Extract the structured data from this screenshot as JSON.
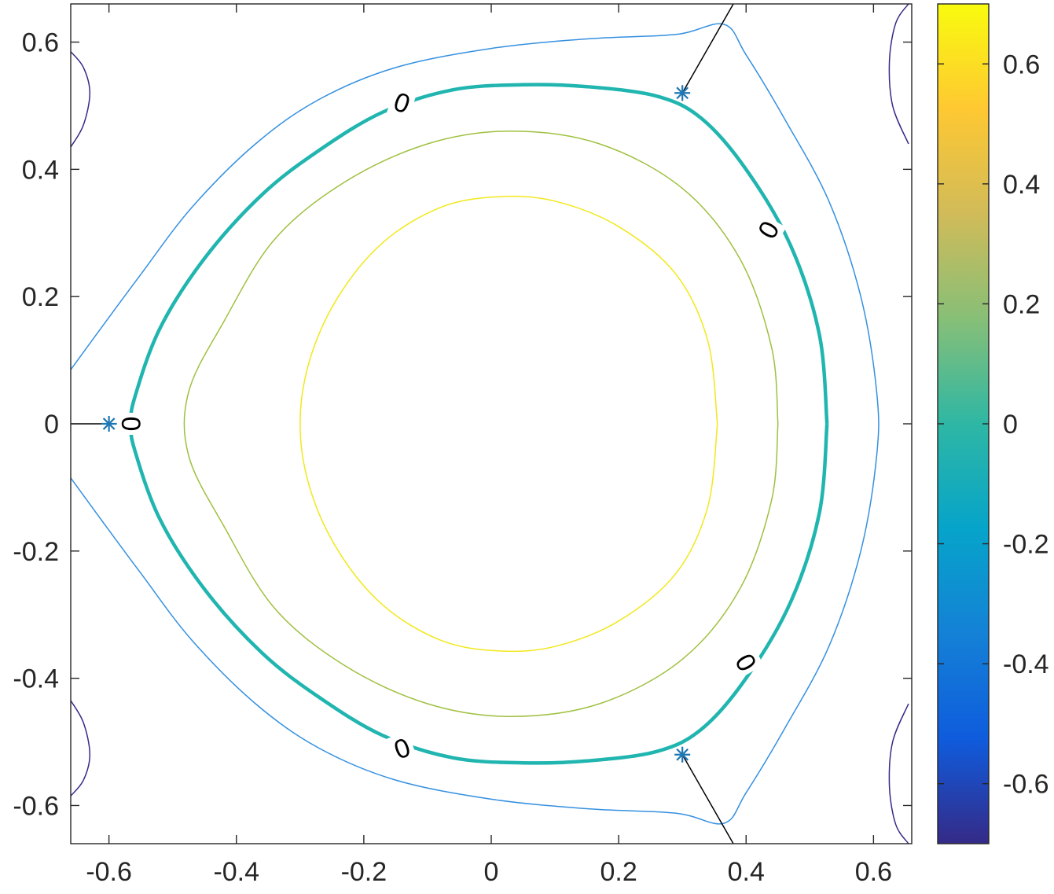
{
  "chart_data": {
    "type": "contour",
    "title": "",
    "xlabel": "",
    "ylabel": "",
    "xlim": [
      -0.66,
      0.66
    ],
    "ylim": [
      -0.66,
      0.66
    ],
    "xticks": [
      -0.6,
      -0.4,
      -0.2,
      0,
      0.2,
      0.4,
      0.6
    ],
    "xtick_labels": [
      "-0.6",
      "-0.4",
      "-0.2",
      "0",
      "0.2",
      "0.4",
      "0.6"
    ],
    "yticks": [
      -0.6,
      -0.4,
      -0.2,
      0,
      0.2,
      0.4,
      0.6
    ],
    "ytick_labels": [
      "-0.6",
      "-0.4",
      "-0.2",
      "0",
      "0.2",
      "0.4",
      "0.6"
    ],
    "grid": false,
    "colorbar": {
      "clim": [
        -0.7,
        0.7
      ],
      "ticks": [
        0.6,
        0.4,
        0.2,
        0,
        -0.2,
        -0.4,
        -0.6
      ],
      "tick_labels": [
        "0.6",
        "0.4",
        "0.2",
        "0",
        "-0.2",
        "-0.4",
        "-0.6"
      ],
      "colormap": "parula"
    },
    "contours": [
      {
        "level": 0.35,
        "color": "#f2e81c",
        "width": 1.5,
        "points": [
          [
            0.355,
            0
          ],
          [
            0.34,
            0.13
          ],
          [
            0.29,
            0.235
          ],
          [
            0.2,
            0.31
          ],
          [
            0.1,
            0.35
          ],
          [
            0.01,
            0.357
          ],
          [
            -0.08,
            0.34
          ],
          [
            -0.17,
            0.285
          ],
          [
            -0.24,
            0.2
          ],
          [
            -0.285,
            0.1
          ],
          [
            -0.3,
            0
          ],
          [
            -0.285,
            -0.1
          ],
          [
            -0.24,
            -0.2
          ],
          [
            -0.17,
            -0.285
          ],
          [
            -0.08,
            -0.34
          ],
          [
            0.01,
            -0.357
          ],
          [
            0.1,
            -0.35
          ],
          [
            0.2,
            -0.31
          ],
          [
            0.29,
            -0.235
          ],
          [
            0.34,
            -0.13
          ],
          [
            0.355,
            0
          ]
        ]
      },
      {
        "level": 0.2,
        "color": "#9fc040",
        "width": 1.5,
        "points": [
          [
            0.45,
            0
          ],
          [
            0.44,
            0.12
          ],
          [
            0.39,
            0.26
          ],
          [
            0.3,
            0.37
          ],
          [
            0.17,
            0.44
          ],
          [
            0.03,
            0.46
          ],
          [
            -0.1,
            0.44
          ],
          [
            -0.23,
            0.38
          ],
          [
            -0.34,
            0.29
          ],
          [
            -0.42,
            0.16
          ],
          [
            -0.475,
            0.05
          ],
          [
            -0.475,
            -0.05
          ],
          [
            -0.42,
            -0.16
          ],
          [
            -0.34,
            -0.29
          ],
          [
            -0.23,
            -0.38
          ],
          [
            -0.1,
            -0.44
          ],
          [
            0.03,
            -0.46
          ],
          [
            0.17,
            -0.44
          ],
          [
            0.3,
            -0.37
          ],
          [
            0.39,
            -0.26
          ],
          [
            0.44,
            -0.12
          ],
          [
            0.45,
            0
          ]
        ]
      },
      {
        "level": 0,
        "color": "#21b5b0",
        "width": 4.5,
        "points": [
          [
            0.527,
            0
          ],
          [
            0.515,
            0.14
          ],
          [
            0.47,
            0.28
          ],
          [
            0.4,
            0.4
          ],
          [
            0.33,
            0.48
          ],
          [
            0.26,
            0.515
          ],
          [
            0.15,
            0.53
          ],
          [
            0.05,
            0.533
          ],
          [
            -0.06,
            0.525
          ],
          [
            -0.17,
            0.49
          ],
          [
            -0.27,
            0.43
          ],
          [
            -0.36,
            0.36
          ],
          [
            -0.45,
            0.26
          ],
          [
            -0.52,
            0.15
          ],
          [
            -0.56,
            0.04
          ],
          [
            -0.565,
            0
          ],
          [
            -0.56,
            -0.04
          ],
          [
            -0.52,
            -0.15
          ],
          [
            -0.45,
            -0.26
          ],
          [
            -0.36,
            -0.36
          ],
          [
            -0.27,
            -0.43
          ],
          [
            -0.17,
            -0.49
          ],
          [
            -0.06,
            -0.525
          ],
          [
            0.05,
            -0.533
          ],
          [
            0.15,
            -0.53
          ],
          [
            0.26,
            -0.515
          ],
          [
            0.33,
            -0.48
          ],
          [
            0.4,
            -0.4
          ],
          [
            0.47,
            -0.28
          ],
          [
            0.515,
            -0.14
          ],
          [
            0.527,
            0
          ]
        ]
      },
      {
        "level": -0.3,
        "color": "#3590e0",
        "width": 1.5,
        "points": [
          [
            -0.66,
            0.085
          ],
          [
            -0.62,
            0.14
          ],
          [
            -0.55,
            0.235
          ],
          [
            -0.47,
            0.34
          ],
          [
            -0.37,
            0.44
          ],
          [
            -0.27,
            0.51
          ],
          [
            -0.15,
            0.56
          ],
          [
            0,
            0.59
          ],
          [
            0.15,
            0.605
          ],
          [
            0.29,
            0.612
          ],
          [
            0.365,
            0.628
          ],
          [
            0.4,
            0.58
          ],
          [
            0.46,
            0.48
          ],
          [
            0.53,
            0.35
          ],
          [
            0.58,
            0.2
          ],
          [
            0.605,
            0.05
          ],
          [
            0.605,
            -0.05
          ],
          [
            0.58,
            -0.2
          ],
          [
            0.53,
            -0.35
          ],
          [
            0.46,
            -0.48
          ],
          [
            0.4,
            -0.58
          ],
          [
            0.365,
            -0.628
          ],
          [
            0.29,
            -0.612
          ],
          [
            0.15,
            -0.605
          ],
          [
            0,
            -0.59
          ],
          [
            -0.15,
            -0.56
          ],
          [
            -0.27,
            -0.51
          ],
          [
            -0.37,
            -0.44
          ],
          [
            -0.47,
            -0.34
          ],
          [
            -0.55,
            -0.235
          ],
          [
            -0.62,
            -0.14
          ],
          [
            -0.66,
            -0.085
          ]
        ]
      },
      {
        "level": -0.6,
        "color": "#352a87",
        "width": 1.5,
        "points": [
          [
            -0.66,
            0.585
          ],
          [
            -0.64,
            0.56
          ],
          [
            -0.63,
            0.52
          ],
          [
            -0.64,
            0.47
          ],
          [
            -0.66,
            0.435
          ]
        ]
      },
      {
        "level": -0.6,
        "color": "#352a87",
        "width": 1.5,
        "points": [
          [
            -0.66,
            -0.435
          ],
          [
            -0.64,
            -0.47
          ],
          [
            -0.63,
            -0.52
          ],
          [
            -0.64,
            -0.56
          ],
          [
            -0.66,
            -0.585
          ]
        ]
      },
      {
        "level": -0.6,
        "color": "#352a87",
        "width": 1.5,
        "points": [
          [
            0.655,
            0.66
          ],
          [
            0.635,
            0.63
          ],
          [
            0.625,
            0.57
          ],
          [
            0.63,
            0.5
          ],
          [
            0.655,
            0.44
          ]
        ]
      },
      {
        "level": -0.6,
        "color": "#352a87",
        "width": 1.5,
        "points": [
          [
            0.655,
            -0.44
          ],
          [
            0.63,
            -0.5
          ],
          [
            0.625,
            -0.57
          ],
          [
            0.635,
            -0.63
          ],
          [
            0.655,
            -0.66
          ]
        ]
      }
    ],
    "contour_labels": [
      {
        "text": "0",
        "x": -0.14,
        "y": 0.505,
        "angle": 20
      },
      {
        "text": "0",
        "x": 0.435,
        "y": 0.305,
        "angle": -60
      },
      {
        "text": "0",
        "x": -0.565,
        "y": 0,
        "angle": 90
      },
      {
        "text": "0",
        "x": 0.4,
        "y": -0.375,
        "angle": 60
      },
      {
        "text": "0",
        "x": -0.14,
        "y": -0.51,
        "angle": -20
      }
    ],
    "markers": [
      {
        "symbol": "*",
        "x": -0.6,
        "y": 0,
        "color": "#1f77b4"
      },
      {
        "symbol": "*",
        "x": 0.3,
        "y": 0.52,
        "color": "#1f77b4"
      },
      {
        "symbol": "*",
        "x": 0.3,
        "y": -0.52,
        "color": "#1f77b4"
      }
    ],
    "lines": [
      {
        "color": "#000000",
        "points": [
          [
            -0.6,
            0
          ],
          [
            -0.66,
            0
          ]
        ]
      },
      {
        "color": "#000000",
        "points": [
          [
            0.3,
            0.52
          ],
          [
            0.38,
            0.66
          ]
        ]
      },
      {
        "color": "#000000",
        "points": [
          [
            0.3,
            -0.52
          ],
          [
            0.38,
            -0.66
          ]
        ]
      }
    ]
  }
}
